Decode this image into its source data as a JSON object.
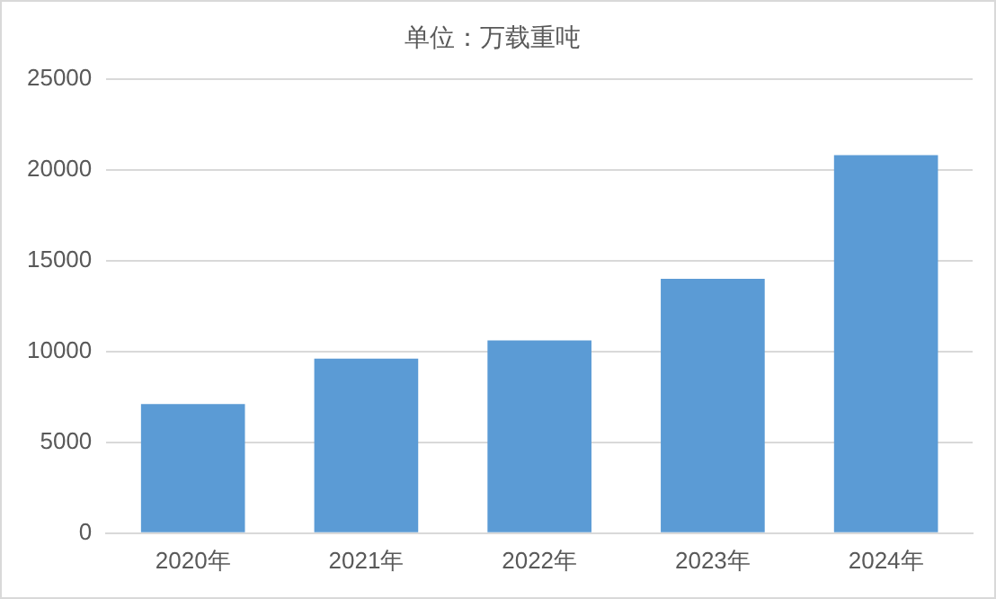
{
  "chart_data": {
    "type": "bar",
    "title": "单位：万载重吨",
    "categories": [
      "2020年",
      "2021年",
      "2022年",
      "2023年",
      "2024年"
    ],
    "values": [
      7100,
      9600,
      10600,
      14000,
      20800
    ],
    "color": "#5b9bd5",
    "ylim": [
      0,
      25000
    ],
    "yticks": [
      0,
      5000,
      10000,
      15000,
      20000,
      25000
    ],
    "grid": "y",
    "legend": false
  }
}
